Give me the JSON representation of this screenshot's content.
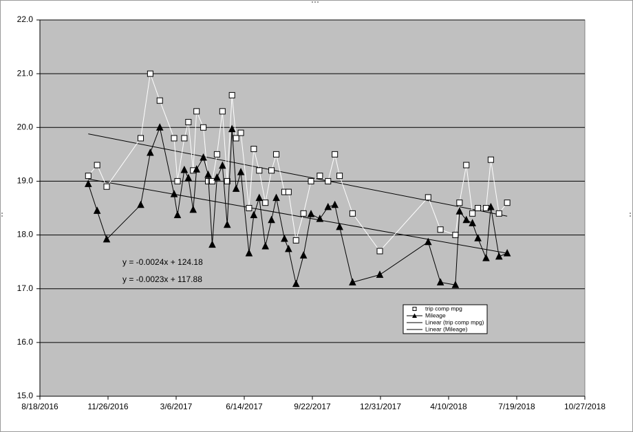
{
  "chart_data": {
    "type": "line",
    "x": [
      "10/28/2016",
      "11/10/2016",
      "11/24/2016",
      "1/13/2017",
      "1/27/2017",
      "2/10/2017",
      "3/3/2017",
      "3/8/2017",
      "3/18/2017",
      "3/24/2017",
      "3/31/2017",
      "4/5/2017",
      "4/15/2017",
      "4/22/2017",
      "4/28/2017",
      "5/5/2017",
      "5/13/2017",
      "5/20/2017",
      "5/27/2017",
      "6/2/2017",
      "6/9/2017",
      "6/21/2017",
      "6/28/2017",
      "7/6/2017",
      "7/15/2017",
      "7/24/2017",
      "7/31/2017",
      "8/12/2017",
      "8/18/2017",
      "8/29/2017",
      "9/9/2017",
      "9/20/2017",
      "10/3/2017",
      "10/15/2017",
      "10/25/2017",
      "11/1/2017",
      "11/20/2017",
      "12/30/2017",
      "3/11/2018",
      "3/29/2018",
      "4/20/2018",
      "4/26/2018",
      "5/6/2018",
      "5/15/2018",
      "5/23/2018",
      "6/4/2018",
      "6/11/2018",
      "6/23/2018",
      "7/5/2018"
    ],
    "series": [
      {
        "name": "trip comp mpg",
        "color": "#ffffff",
        "marker": "square",
        "values": [
          19.1,
          19.3,
          18.9,
          19.8,
          21.0,
          20.5,
          19.8,
          19.0,
          19.8,
          20.1,
          19.2,
          20.3,
          20.0,
          19.0,
          19.0,
          19.5,
          20.3,
          19.0,
          20.6,
          19.8,
          19.9,
          18.5,
          19.6,
          19.2,
          18.6,
          19.2,
          19.5,
          18.8,
          18.8,
          17.9,
          18.4,
          19.0,
          19.1,
          19.0,
          19.5,
          19.1,
          18.4,
          17.7,
          18.7,
          18.1,
          18.0,
          18.6,
          19.3,
          18.4,
          18.5,
          18.5,
          19.4,
          18.4,
          18.6
        ]
      },
      {
        "name": "Mileage",
        "color": "#000000",
        "marker": "triangle",
        "values": [
          18.95,
          18.45,
          17.92,
          18.56,
          19.53,
          20.0,
          18.76,
          18.37,
          19.21,
          19.06,
          18.47,
          19.22,
          19.44,
          19.12,
          17.82,
          19.07,
          19.29,
          18.19,
          19.97,
          18.86,
          19.17,
          17.66,
          18.37,
          18.69,
          17.79,
          18.28,
          18.69,
          17.93,
          17.74,
          17.09,
          17.62,
          18.39,
          18.3,
          18.52,
          18.56,
          18.15,
          17.12,
          17.26,
          17.87,
          17.12,
          17.07,
          18.44,
          18.28,
          18.22,
          17.94,
          17.57,
          18.52,
          17.6,
          17.66
        ]
      }
    ],
    "trendlines": [
      {
        "name": "Linear (trip comp mpg)",
        "color": "#000000",
        "x": [
          "10/28/2016",
          "7/5/2018"
        ],
        "values": [
          19.88,
          18.35
        ]
      },
      {
        "name": "Linear (Mileage)",
        "color": "#000000",
        "x": [
          "10/28/2016",
          "7/5/2018"
        ],
        "values": [
          19.04,
          17.66
        ]
      }
    ],
    "annotations": [
      "y = -0.0024x + 124.18",
      "y = -0.0023x + 117.88"
    ],
    "xlim": [
      "8/18/2016",
      "10/27/2018"
    ],
    "xticks": [
      "8/18/2016",
      "11/26/2016",
      "3/6/2017",
      "6/14/2017",
      "9/22/2017",
      "12/31/2017",
      "4/10/2018",
      "7/19/2018",
      "10/27/2018"
    ],
    "ylim": [
      15,
      22
    ],
    "yticks": [
      {
        "value": 15,
        "label": "15.0"
      },
      {
        "value": 16,
        "label": "16.0"
      },
      {
        "value": 17,
        "label": "17.0"
      },
      {
        "value": 18,
        "label": "18.0"
      },
      {
        "value": 19,
        "label": "19.0"
      },
      {
        "value": 20,
        "label": "20.0"
      },
      {
        "value": 21,
        "label": "21.0"
      },
      {
        "value": 22,
        "label": "22.0"
      }
    ],
    "grid": true,
    "plot_background": "#c0c0c0"
  }
}
